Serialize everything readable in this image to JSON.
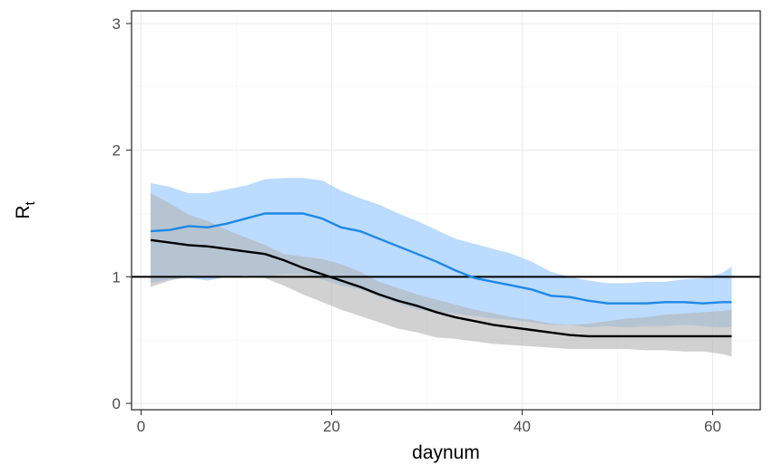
{
  "chart_data": {
    "type": "line",
    "xlabel": "daynum",
    "ylabel": "R",
    "ylabel_subscript": "t",
    "xlim": [
      -1,
      65
    ],
    "ylim": [
      -0.05,
      3.1
    ],
    "x_ticks": [
      0,
      20,
      40,
      60
    ],
    "x_tick_labels": [
      "0",
      "20",
      "40",
      "60"
    ],
    "y_ticks": [
      0,
      1,
      2,
      3
    ],
    "y_tick_labels": [
      "0",
      "1",
      "2",
      "3"
    ],
    "grid": true,
    "reference_line": {
      "y": 1,
      "color": "#000000"
    },
    "legend": "none",
    "x": [
      1,
      3,
      5,
      7,
      9,
      11,
      13,
      15,
      17,
      19,
      21,
      23,
      25,
      27,
      29,
      31,
      33,
      35,
      37,
      39,
      41,
      43,
      45,
      47,
      49,
      51,
      53,
      55,
      57,
      59,
      61,
      62
    ],
    "series": [
      {
        "color": "#1e88e5",
        "band_color": "#a8d1ff",
        "mean": [
          1.36,
          1.37,
          1.4,
          1.39,
          1.42,
          1.46,
          1.5,
          1.5,
          1.5,
          1.46,
          1.39,
          1.36,
          1.3,
          1.24,
          1.18,
          1.12,
          1.05,
          0.99,
          0.96,
          0.93,
          0.9,
          0.85,
          0.84,
          0.81,
          0.79,
          0.79,
          0.79,
          0.8,
          0.8,
          0.79,
          0.8,
          0.8
        ],
        "lower": [
          0.95,
          0.98,
          0.99,
          0.97,
          1.0,
          1.01,
          1.0,
          1.02,
          1.02,
          0.98,
          0.93,
          0.9,
          0.84,
          0.79,
          0.74,
          0.72,
          0.71,
          0.69,
          0.67,
          0.66,
          0.64,
          0.62,
          0.62,
          0.6,
          0.61,
          0.6,
          0.61,
          0.61,
          0.62,
          0.61,
          0.6,
          0.6
        ],
        "upper": [
          1.74,
          1.71,
          1.66,
          1.66,
          1.69,
          1.72,
          1.77,
          1.78,
          1.78,
          1.76,
          1.68,
          1.62,
          1.57,
          1.5,
          1.44,
          1.37,
          1.3,
          1.26,
          1.22,
          1.18,
          1.12,
          1.04,
          1.0,
          0.97,
          0.95,
          0.95,
          0.96,
          0.96,
          0.98,
          0.99,
          1.03,
          1.08
        ]
      },
      {
        "color": "#000000",
        "band_color": "#b3b3b3",
        "mean": [
          1.29,
          1.27,
          1.25,
          1.24,
          1.22,
          1.2,
          1.18,
          1.13,
          1.07,
          1.02,
          0.97,
          0.92,
          0.86,
          0.81,
          0.77,
          0.72,
          0.68,
          0.65,
          0.62,
          0.6,
          0.58,
          0.56,
          0.54,
          0.53,
          0.53,
          0.53,
          0.53,
          0.53,
          0.53,
          0.53,
          0.53,
          0.53
        ],
        "lower": [
          0.92,
          0.97,
          1.0,
          1.0,
          1.0,
          1.01,
          0.99,
          0.93,
          0.86,
          0.8,
          0.74,
          0.69,
          0.64,
          0.59,
          0.56,
          0.52,
          0.51,
          0.49,
          0.47,
          0.46,
          0.45,
          0.44,
          0.43,
          0.43,
          0.43,
          0.43,
          0.42,
          0.42,
          0.41,
          0.41,
          0.39,
          0.37
        ],
        "upper": [
          1.66,
          1.58,
          1.49,
          1.44,
          1.37,
          1.31,
          1.25,
          1.18,
          1.16,
          1.14,
          1.1,
          1.04,
          0.96,
          0.91,
          0.86,
          0.82,
          0.78,
          0.74,
          0.71,
          0.68,
          0.66,
          0.63,
          0.62,
          0.63,
          0.65,
          0.67,
          0.68,
          0.7,
          0.71,
          0.72,
          0.73,
          0.74
        ]
      }
    ]
  }
}
